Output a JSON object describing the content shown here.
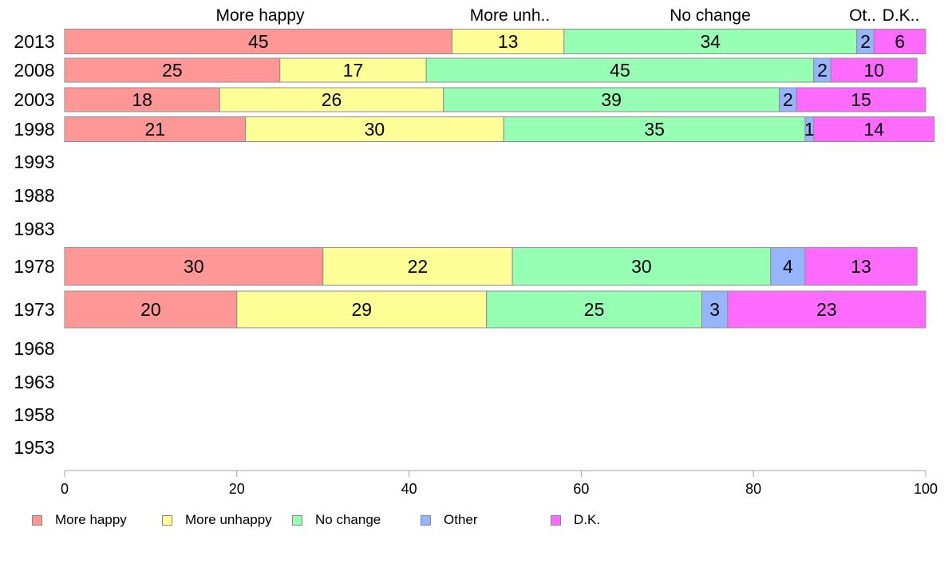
{
  "chart_data": {
    "type": "bar",
    "orientation": "horizontal",
    "stacked": true,
    "categories": [
      "2013",
      "2008",
      "2003",
      "1998",
      "1993",
      "1988",
      "1983",
      "1978",
      "1973",
      "1968",
      "1963",
      "1958",
      "1953"
    ],
    "series": [
      {
        "name": "More happy",
        "header": "More happy",
        "color": "#ff9797",
        "values": [
          45,
          25,
          18,
          21,
          null,
          null,
          null,
          30,
          20,
          null,
          null,
          null,
          null
        ]
      },
      {
        "name": "More unhappy",
        "header": "More unh..",
        "color": "#ffff97",
        "values": [
          13,
          17,
          26,
          30,
          null,
          null,
          null,
          22,
          29,
          null,
          null,
          null,
          null
        ]
      },
      {
        "name": "No change",
        "header": "No change",
        "color": "#97ffb4",
        "values": [
          34,
          45,
          39,
          35,
          null,
          null,
          null,
          30,
          25,
          null,
          null,
          null,
          null
        ]
      },
      {
        "name": "Other",
        "header": "Ot..",
        "color": "#97b4ff",
        "values": [
          2,
          2,
          2,
          1,
          null,
          null,
          null,
          4,
          3,
          null,
          null,
          null,
          null
        ]
      },
      {
        "name": "D.K.",
        "header": "D.K..",
        "color": "#ff6bff",
        "values": [
          6,
          10,
          15,
          14,
          null,
          null,
          null,
          13,
          23,
          null,
          null,
          null,
          null
        ]
      }
    ],
    "xlim": [
      0,
      100
    ],
    "xticks": [
      "0",
      "20",
      "40",
      "60",
      "80",
      "100"
    ],
    "grid": false,
    "legend_position": "bottom"
  }
}
